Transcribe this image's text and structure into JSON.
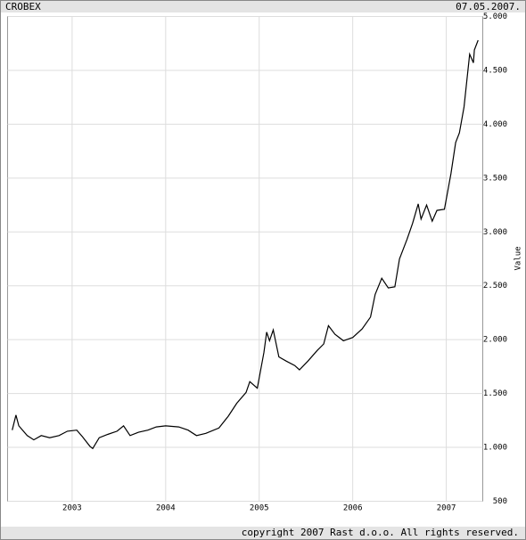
{
  "chart_data": {
    "type": "line",
    "title": "CROBEX",
    "subtitle": "07.05.2007.",
    "y_label": "Value",
    "copyright": "copyright 2007 Rast d.o.o. All rights reserved.",
    "x": [
      2002.36,
      2002.4,
      2002.43,
      2002.52,
      2002.59,
      2002.67,
      2002.76,
      2002.86,
      2002.95,
      2003.05,
      2003.11,
      2003.19,
      2003.22,
      2003.29,
      2003.38,
      2003.48,
      2003.55,
      2003.62,
      2003.71,
      2003.81,
      2003.9,
      2004.0,
      2004.14,
      2004.24,
      2004.33,
      2004.43,
      2004.57,
      2004.67,
      2004.76,
      2004.86,
      2004.9,
      2004.98,
      2005.05,
      2005.08,
      2005.11,
      2005.15,
      2005.21,
      2005.29,
      2005.38,
      2005.43,
      2005.52,
      2005.62,
      2005.69,
      2005.74,
      2005.81,
      2005.9,
      2006.0,
      2006.1,
      2006.19,
      2006.24,
      2006.31,
      2006.38,
      2006.45,
      2006.5,
      2006.58,
      2006.64,
      2006.7,
      2006.73,
      2006.79,
      2006.85,
      2006.9,
      2006.98,
      2007.05,
      2007.1,
      2007.14,
      2007.19,
      2007.22,
      2007.25,
      2007.29,
      2007.3,
      2007.34
    ],
    "series": [
      {
        "color": "#000000",
        "values": [
          1160,
          1300,
          1200,
          1110,
          1070,
          1110,
          1090,
          1110,
          1150,
          1160,
          1100,
          1010,
          990,
          1090,
          1120,
          1150,
          1200,
          1110,
          1140,
          1160,
          1190,
          1200,
          1190,
          1160,
          1110,
          1130,
          1180,
          1290,
          1410,
          1510,
          1610,
          1550,
          1880,
          2070,
          1990,
          2090,
          1840,
          1800,
          1760,
          1720,
          1800,
          1900,
          1960,
          2130,
          2050,
          1990,
          2020,
          2100,
          2210,
          2420,
          2570,
          2480,
          2490,
          2750,
          2930,
          3080,
          3260,
          3120,
          3250,
          3100,
          3200,
          3210,
          3540,
          3830,
          3920,
          4160,
          4410,
          4650,
          4570,
          4690,
          4780
        ]
      }
    ],
    "xlim": [
      2002.31,
      2007.39
    ],
    "xticks": [
      2003,
      2004,
      2005,
      2006,
      2007
    ],
    "ylim": [
      500,
      5000
    ],
    "yticks": [
      500,
      {
        "value": 1000,
        "label": "1.000"
      },
      {
        "value": 1500,
        "label": "1.500"
      },
      {
        "value": 2000,
        "label": "2.000"
      },
      {
        "value": 2500,
        "label": "2.500"
      },
      {
        "value": 3000,
        "label": "3.000"
      },
      {
        "value": 3500,
        "label": "3.500"
      },
      {
        "value": 4000,
        "label": "4.000"
      },
      {
        "value": 4500,
        "label": "4.500"
      },
      {
        "value": 5000,
        "label": "5.000"
      }
    ],
    "grid": true
  }
}
